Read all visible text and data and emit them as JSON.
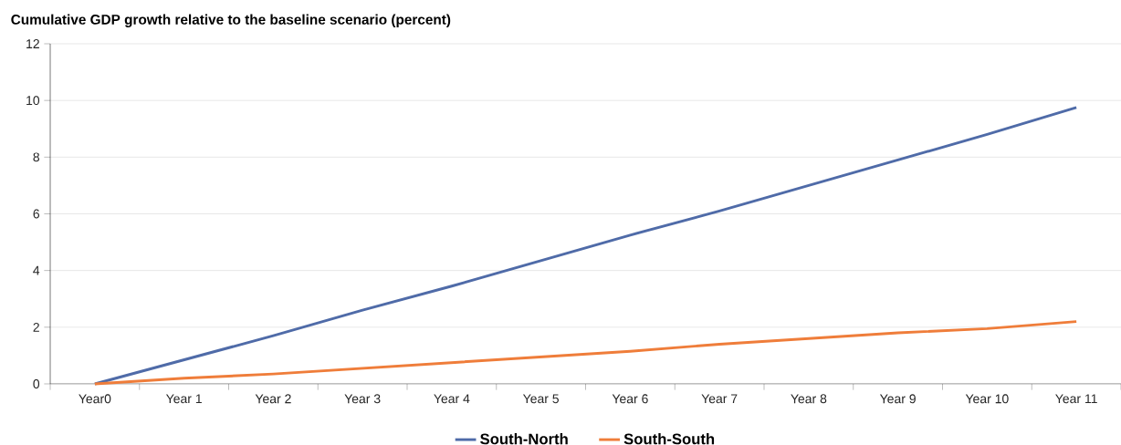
{
  "chart_data": {
    "type": "line",
    "title": "Cumulative GDP growth relative to the baseline scenario (percent)",
    "categories": [
      "Year0",
      "Year 1",
      "Year 2",
      "Year 3",
      "Year 4",
      "Year 5",
      "Year 6",
      "Year 7",
      "Year 8",
      "Year 9",
      "Year 10",
      "Year 11"
    ],
    "series": [
      {
        "name": "South-North",
        "color": "#4f6ba8",
        "values": [
          0,
          0.85,
          1.7,
          2.6,
          3.45,
          4.35,
          5.25,
          6.1,
          7.0,
          7.9,
          8.8,
          9.75
        ]
      },
      {
        "name": "South-South",
        "color": "#ef7d3a",
        "values": [
          0,
          0.2,
          0.35,
          0.55,
          0.75,
          0.95,
          1.15,
          1.4,
          1.6,
          1.8,
          1.95,
          2.2
        ]
      }
    ],
    "ylim": [
      0,
      12
    ],
    "yticks": [
      0,
      2,
      4,
      6,
      8,
      10,
      12
    ],
    "grid": "y",
    "legend": "bottom",
    "marker": "none",
    "line_style": "solid"
  }
}
